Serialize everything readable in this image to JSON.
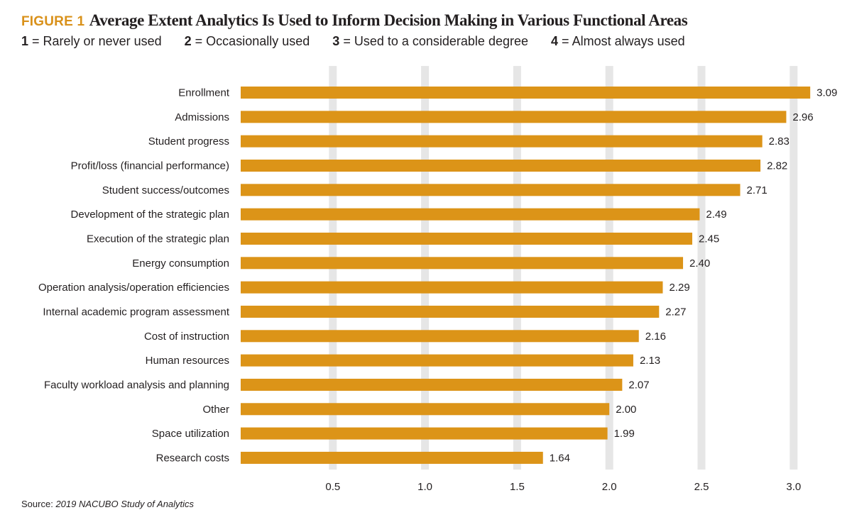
{
  "figure": {
    "label": "FIGURE 1",
    "title": "Average Extent Analytics Is Used to Inform Decision Making in Various Functional Areas"
  },
  "scale_legend": [
    {
      "key": "1",
      "text": "= Rarely or never used"
    },
    {
      "key": "2",
      "text": "= Occasionally used"
    },
    {
      "key": "3",
      "text": "= Used to a considerable degree"
    },
    {
      "key": "4",
      "text": "= Almost always used"
    }
  ],
  "source": {
    "label": "Source:",
    "text": "2019 NACUBO Study of Analytics"
  },
  "colors": {
    "bar": "#dc9418",
    "grid": "#e6e6e6",
    "accent": "#d9911a"
  },
  "chart_data": {
    "type": "bar",
    "orientation": "horizontal",
    "title": "Average Extent Analytics Is Used to Inform Decision Making in Various Functional Areas",
    "categories": [
      "Enrollment",
      "Admissions",
      "Student progress",
      "Profit/loss (financial performance)",
      "Student success/outcomes",
      "Development of the strategic plan",
      "Execution of the strategic plan",
      "Energy consumption",
      "Operation analysis/operation efficiencies",
      "Internal academic program assessment",
      "Cost of instruction",
      "Human resources",
      "Faculty workload analysis and planning",
      "Other",
      "Space utilization",
      "Research costs"
    ],
    "values": [
      3.09,
      2.96,
      2.83,
      2.82,
      2.71,
      2.49,
      2.45,
      2.4,
      2.29,
      2.27,
      2.16,
      2.13,
      2.07,
      2.0,
      1.99,
      1.64
    ],
    "value_labels": [
      "3.09",
      "2.96",
      "2.83",
      "2.82",
      "2.71",
      "2.49",
      "2.45",
      "2.40",
      "2.29",
      "2.27",
      "2.16",
      "2.13",
      "2.07",
      "2.00",
      "1.99",
      "1.64"
    ],
    "xlim": [
      0,
      3.1
    ],
    "xticks": [
      0.5,
      1.0,
      1.5,
      2.0,
      2.5,
      3.0
    ],
    "xtick_labels": [
      "0.5",
      "1.0",
      "1.5",
      "2.0",
      "2.5",
      "3.0"
    ],
    "grid": true
  }
}
